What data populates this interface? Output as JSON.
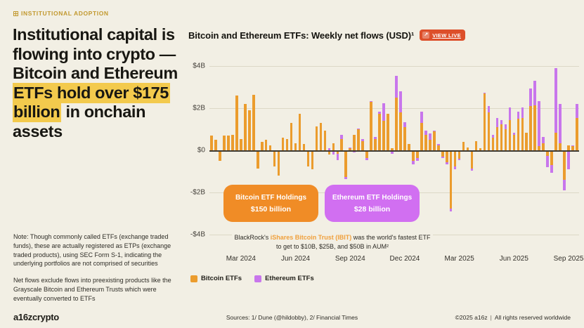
{
  "page": {
    "background": "#F2EFE4",
    "highlight_color": "#F3CA4D",
    "accent_gold": "#C2992F"
  },
  "eyebrow": {
    "label": "INSTITUTIONAL ADOPTION"
  },
  "headline": {
    "pre": "Institutional capital is flowing into crypto — Bitcoin and Ethereum ",
    "highlight": "ETFs hold over $175 billion",
    "post": " in onchain assets"
  },
  "notes": {
    "note1": "Note: Though commonly called ETFs (exchange traded funds), these are actually registered as ETPs (exchange traded products), using SEC Form S-1, indicating the underlying portfolios are not comprised of securities",
    "note2": "Net flows exclude flows into preexisting products like the Grayscale Bitcoin and Ethereum Trusts which were eventually converted to ETFs"
  },
  "chart_header": {
    "title": "Bitcoin and Ethereum ETFs: Weekly net flows (USD)¹",
    "view_live_label": "VIEW LIVE",
    "view_live_color": "#DD4F2A",
    "external_icon": "↗"
  },
  "callouts": {
    "bitcoin": {
      "title": "Bitcoin ETF Holdings",
      "value": "$150 billion",
      "color": "#F08C26"
    },
    "ethereum": {
      "title": "Ethereum ETF Holdings",
      "value": "$28 billion",
      "color": "#D16FF1"
    }
  },
  "chart_note": {
    "pre": "BlackRock's ",
    "em": "iShares Bitcoin Trust (IBIT)",
    "post": " was the world's fastest ETF to get to $10B, $25B, and $50B in AUM²"
  },
  "footer": {
    "logo": "a16zcrypto",
    "sources": "Sources: 1/ Dune (@hildobby), 2/ Financial Times",
    "copyright": "©2025 a16z",
    "divider": "|",
    "rights": "All rights reserved worldwide"
  },
  "chart_data": {
    "type": "bar",
    "stacked": true,
    "title": "Bitcoin and Ethereum ETFs: Weekly net flows (USD)",
    "unit": "USD billions per week",
    "grid": true,
    "legend_position": "bottom-left",
    "ylim": [
      -4.65,
      4.65
    ],
    "yticks": [
      "$4B",
      "$2B",
      "$0",
      "-$2B",
      "-$4B"
    ],
    "ytick_values": [
      4,
      2,
      0,
      -2,
      -4
    ],
    "x_tick_labels": [
      "Mar 2024",
      "Jun 2024",
      "Sep 2024",
      "Dec 2024",
      "Mar 2025",
      "Jun 2025",
      "Sep 2025"
    ],
    "x_tick_indices": [
      7,
      20,
      33,
      46,
      59,
      72,
      85
    ],
    "x_description": "Weekly bars from mid-Jan 2024 (US spot Bitcoin ETF launch) to late Sep 2025; values estimated from gridlines",
    "series": [
      {
        "name": "Bitcoin ETFs",
        "color": "#EB9C2D",
        "values": [
          0.7,
          0.5,
          -0.5,
          0.7,
          0.7,
          0.75,
          2.6,
          0.55,
          2.2,
          1.9,
          2.65,
          -0.85,
          0.4,
          0.5,
          0.25,
          -0.75,
          -1.2,
          0.6,
          0.55,
          1.3,
          0.35,
          1.75,
          0.3,
          -0.75,
          -0.9,
          1.15,
          1.3,
          0.95,
          -0.2,
          0.35,
          -0.15,
          0.55,
          -1.25,
          0.1,
          0.75,
          1.0,
          0.45,
          -0.35,
          2.3,
          0.55,
          1.75,
          1.4,
          1.75,
          0.1,
          2.5,
          1.8,
          1.1,
          0.3,
          -0.5,
          -0.35,
          1.3,
          0.75,
          0.5,
          0.9,
          0.25,
          -0.3,
          -0.55,
          -2.75,
          -0.75,
          -0.4,
          0.4,
          0.15,
          -0.85,
          0.45,
          0.1,
          2.7,
          1.8,
          0.6,
          1.1,
          1.25,
          1.0,
          1.45,
          0.75,
          1.5,
          1.55,
          0.85,
          2.1,
          2.15,
          0.2,
          0.35,
          -0.25,
          -0.7,
          0.85,
          0.35,
          -1.4,
          0.25,
          0.2,
          1.55
        ]
      },
      {
        "name": "Ethereum ETFs",
        "color": "#C876EC",
        "values": [
          0,
          0,
          0,
          0,
          0,
          0,
          0,
          0,
          0,
          0,
          0,
          0,
          0,
          0,
          0,
          0,
          0,
          0,
          0,
          0,
          0,
          0,
          0,
          0,
          0,
          0,
          0,
          0,
          0.1,
          -0.2,
          -0.3,
          0.2,
          -0.1,
          0.05,
          -0.1,
          0.05,
          0.1,
          -0.1,
          0.05,
          0.1,
          0.1,
          0.85,
          0,
          -0.15,
          1.05,
          1.0,
          0.25,
          0,
          -0.15,
          -0.15,
          0.55,
          0.2,
          0.3,
          0.05,
          0.05,
          -0.05,
          -0.1,
          -0.15,
          -0.15,
          -0.05,
          0,
          -0.05,
          -0.1,
          0,
          -0.05,
          0.05,
          0.3,
          0.15,
          0.45,
          0.2,
          0.25,
          0.6,
          0.1,
          0.35,
          0.5,
          0,
          0.85,
          1.15,
          2.15,
          0.3,
          -0.55,
          -0.35,
          3.05,
          1.85,
          -0.5,
          -0.9,
          0.05,
          0.65
        ]
      }
    ]
  }
}
